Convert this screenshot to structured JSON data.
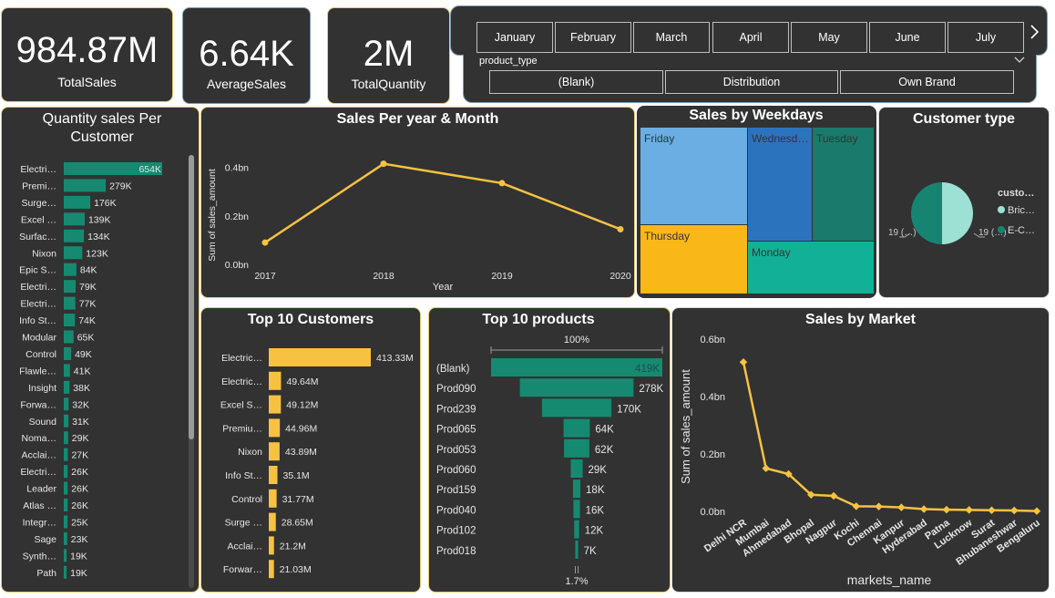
{
  "kpis": [
    {
      "value": "984.87M",
      "label": "TotalSales"
    },
    {
      "value": "6.64K",
      "label": "AverageSales"
    },
    {
      "value": "2M",
      "label": "TotalQuantity"
    }
  ],
  "month_slicer": {
    "months": [
      "January",
      "February",
      "March",
      "April",
      "May",
      "June",
      "July"
    ],
    "next_icon": "chevron-right-icon"
  },
  "product_type_slicer": {
    "title": "product_type",
    "options": [
      "(Blank)",
      "Distribution",
      "Own Brand"
    ],
    "dropdown_icon": "chevron-down-icon"
  },
  "colors": {
    "teal": "#168a71",
    "yellow": "#f7c242",
    "line": "#f7c242"
  },
  "chart_data": [
    {
      "id": "quantity_per_customer",
      "type": "bar",
      "orientation": "horizontal",
      "title": "Quantity sales Per Customer",
      "categories": [
        "Electri…",
        "Premi…",
        "Surge…",
        "Excel …",
        "Surfac…",
        "Nixon",
        "Epic S…",
        "Electri…",
        "Electri…",
        "Info St…",
        "Modular",
        "Control",
        "Flawle…",
        "Insight",
        "Forwa…",
        "Sound",
        "Noma…",
        "Acclai…",
        "Electri…",
        "Leader",
        "Atlas …",
        "Integr…",
        "Sage",
        "Synth…",
        "Path"
      ],
      "values": [
        654,
        279,
        176,
        139,
        134,
        123,
        84,
        79,
        77,
        74,
        65,
        49,
        41,
        38,
        32,
        31,
        29,
        27,
        26,
        26,
        26,
        25,
        23,
        19,
        19
      ],
      "labels": [
        "654K",
        "279K",
        "176K",
        "139K",
        "134K",
        "123K",
        "84K",
        "79K",
        "77K",
        "74K",
        "65K",
        "49K",
        "41K",
        "38K",
        "32K",
        "31K",
        "29K",
        "27K",
        "26K",
        "26K",
        "26K",
        "25K",
        "23K",
        "19K",
        "19K"
      ],
      "unit": "K"
    },
    {
      "id": "sales_per_year",
      "type": "line",
      "title": "Sales Per year & Month",
      "x": [
        "2017",
        "2018",
        "2019",
        "2020"
      ],
      "values": [
        0.09,
        0.415,
        0.335,
        0.145
      ],
      "xlabel": "Year",
      "ylabel": "Sum of sales_amount",
      "yticks": [
        0,
        0.2,
        0.4
      ],
      "ytick_labels": [
        "0.0bn",
        "0.2bn",
        "0.4bn"
      ],
      "ylim": [
        0,
        0.44
      ]
    },
    {
      "id": "sales_by_weekdays",
      "type": "treemap",
      "title": "Sales by Weekdays",
      "labels": [
        "Friday",
        "Wednesd…",
        "Tuesday",
        "Thursday",
        "Monday"
      ],
      "colors": [
        "#6aaee4",
        "#2c73be",
        "#1a7a6c",
        "#f9b818",
        "#12b197"
      ]
    },
    {
      "id": "customer_type",
      "type": "pie",
      "title": "Customer type",
      "legend_title": "custo…",
      "labels": [
        "Bric…",
        "E-C…"
      ],
      "values": [
        50,
        50
      ],
      "colors": [
        "#9de0d4",
        "#178472"
      ],
      "data_labels": [
        "19 (…)",
        "19 (…)"
      ]
    },
    {
      "id": "top10_customers",
      "type": "bar",
      "orientation": "horizontal",
      "title": "Top 10 Customers",
      "categories": [
        "Electric…",
        "Electric…",
        "Excel S…",
        "Premiu…",
        "Nixon",
        "Info St…",
        "Control",
        "Surge …",
        "Acclai…",
        "Forwar…"
      ],
      "values": [
        413.33,
        49.64,
        49.12,
        44.96,
        43.89,
        35.1,
        31.77,
        28.65,
        21.2,
        21.03
      ],
      "labels": [
        "413.33M",
        "49.64M",
        "49.12M",
        "44.96M",
        "43.89M",
        "35.1M",
        "31.77M",
        "28.65M",
        "21.2M",
        "21.03M"
      ],
      "unit": "M"
    },
    {
      "id": "top10_products",
      "type": "funnel",
      "title": "Top 10 products",
      "categories": [
        "(Blank)",
        "Prod090",
        "Prod239",
        "Prod065",
        "Prod053",
        "Prod060",
        "Prod159",
        "Prod040",
        "Prod102",
        "Prod018"
      ],
      "values": [
        419,
        278,
        170,
        64,
        62,
        29,
        18,
        16,
        12,
        7
      ],
      "labels": [
        "419K",
        "278K",
        "170K",
        "64K",
        "62K",
        "29K",
        "18K",
        "16K",
        "12K",
        "7K"
      ],
      "top_percent": "100%",
      "bottom_percent": "1.7%"
    },
    {
      "id": "sales_by_market",
      "type": "line",
      "title": "Sales by Market",
      "x": [
        "Delhi NCR",
        "Mumbai",
        "Ahmedabad",
        "Bhopal",
        "Nagpur",
        "Kochi",
        "Chennai",
        "Kanpur",
        "Hyderabad",
        "Patna",
        "Lucknow",
        "Surat",
        "Bhubaneshwar",
        "Bengaluru"
      ],
      "values": [
        0.52,
        0.15,
        0.13,
        0.058,
        0.054,
        0.018,
        0.017,
        0.014,
        0.008,
        0.006,
        0.005,
        0.004,
        0.003,
        0.001
      ],
      "xlabel": "markets_name",
      "ylabel": "Sum of sales_amount",
      "yticks": [
        0,
        0.2,
        0.4,
        0.6
      ],
      "ytick_labels": [
        "0.0bn",
        "0.2bn",
        "0.4bn",
        "0.6bn"
      ],
      "ylim": [
        0,
        0.6
      ]
    }
  ]
}
